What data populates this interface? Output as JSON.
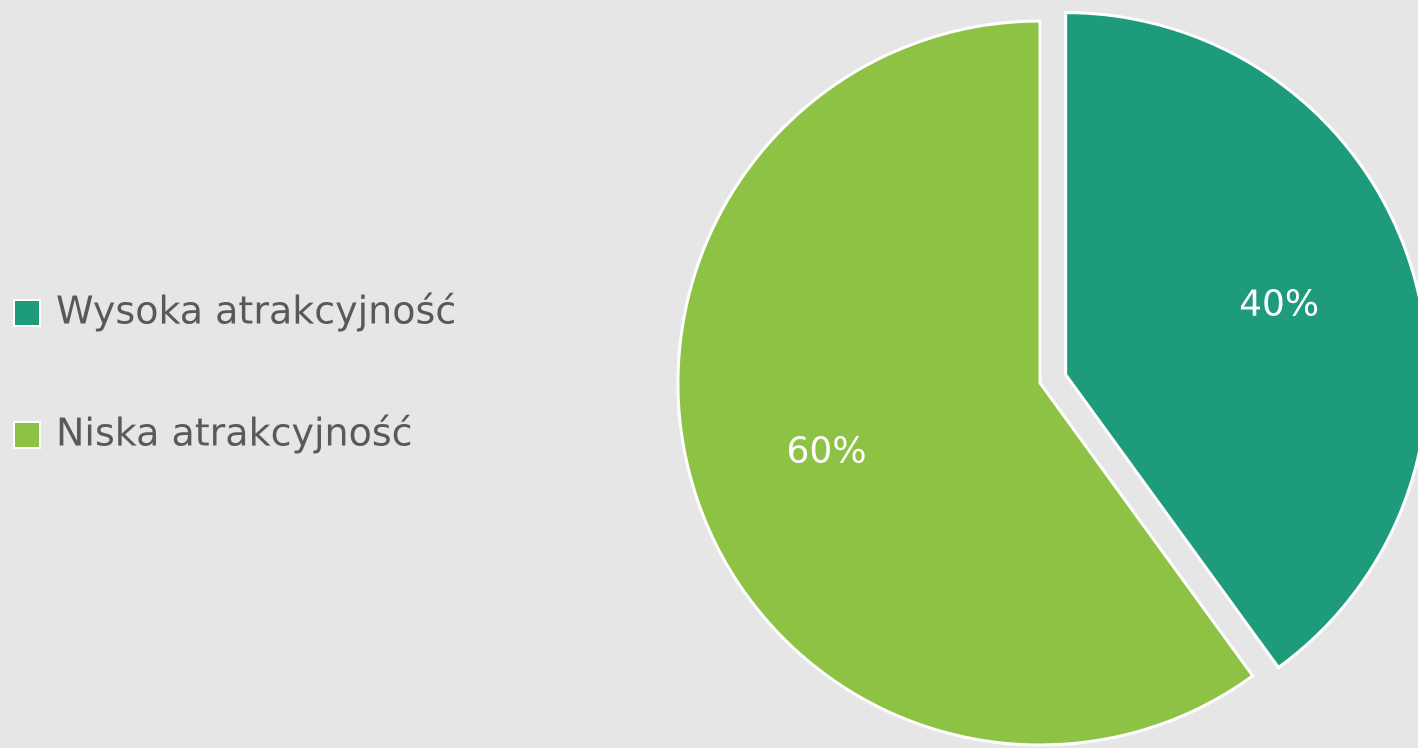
{
  "chart_data": {
    "type": "pie",
    "categories": [
      "Wysoka atrakcyjność",
      "Niska atrakcyjność"
    ],
    "values": [
      40,
      60
    ],
    "value_labels": [
      "40%",
      "60%"
    ],
    "colors": [
      "#1e9b7b",
      "#8dc244"
    ],
    "exploded": [
      true,
      false
    ],
    "legend": "left"
  }
}
